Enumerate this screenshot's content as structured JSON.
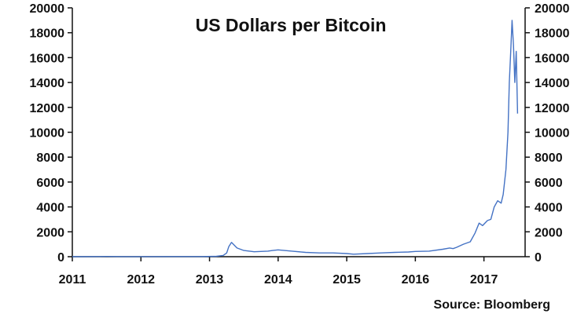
{
  "chart_data": {
    "type": "line",
    "title": "US Dollars per Bitcoin",
    "source": "Source: Bloomberg",
    "xlabel": "",
    "ylabel": "",
    "xlim": [
      2011.0,
      2017.6
    ],
    "ylim": [
      0,
      20000
    ],
    "x_ticks": [
      "2011",
      "2012",
      "2013",
      "2014",
      "2015",
      "2016",
      "2017"
    ],
    "y_ticks": [
      "0",
      "2000",
      "4000",
      "6000",
      "8000",
      "10000",
      "12000",
      "14000",
      "16000",
      "18000",
      "20000"
    ],
    "y_ticks_right": [
      "0",
      "2000",
      "4000",
      "6000",
      "8000",
      "10000",
      "12000",
      "14000",
      "16000",
      "18000",
      "20000"
    ],
    "grid": false,
    "legend": "none",
    "series": [
      {
        "color": "#4472c4",
        "x": [
          2011.0,
          2011.4,
          2011.5,
          2011.8,
          2012.0,
          2012.5,
          2012.9,
          2013.1,
          2013.2,
          2013.25,
          2013.28,
          2013.32,
          2013.4,
          2013.5,
          2013.65,
          2013.85,
          2013.92,
          2014.0,
          2014.2,
          2014.4,
          2014.6,
          2014.8,
          2015.0,
          2015.1,
          2015.3,
          2015.5,
          2015.7,
          2015.9,
          2016.0,
          2016.2,
          2016.4,
          2016.5,
          2016.55,
          2016.6,
          2016.7,
          2016.8,
          2016.87,
          2016.93,
          2016.98,
          2017.05,
          2017.1,
          2017.15,
          2017.2,
          2017.25,
          2017.28,
          2017.32,
          2017.35,
          2017.37,
          2017.39,
          2017.41,
          2017.43,
          2017.45,
          2017.47,
          2017.49
        ],
        "y": [
          0,
          15,
          20,
          5,
          5,
          10,
          13,
          30,
          100,
          300,
          800,
          1150,
          700,
          500,
          400,
          450,
          500,
          550,
          450,
          350,
          300,
          300,
          250,
          200,
          250,
          300,
          350,
          380,
          420,
          450,
          600,
          700,
          650,
          750,
          1000,
          1200,
          1900,
          2700,
          2500,
          2900,
          3000,
          4000,
          4500,
          4300,
          5000,
          7000,
          10000,
          14000,
          16500,
          19000,
          17000,
          14000,
          16500,
          11500
        ]
      }
    ]
  }
}
